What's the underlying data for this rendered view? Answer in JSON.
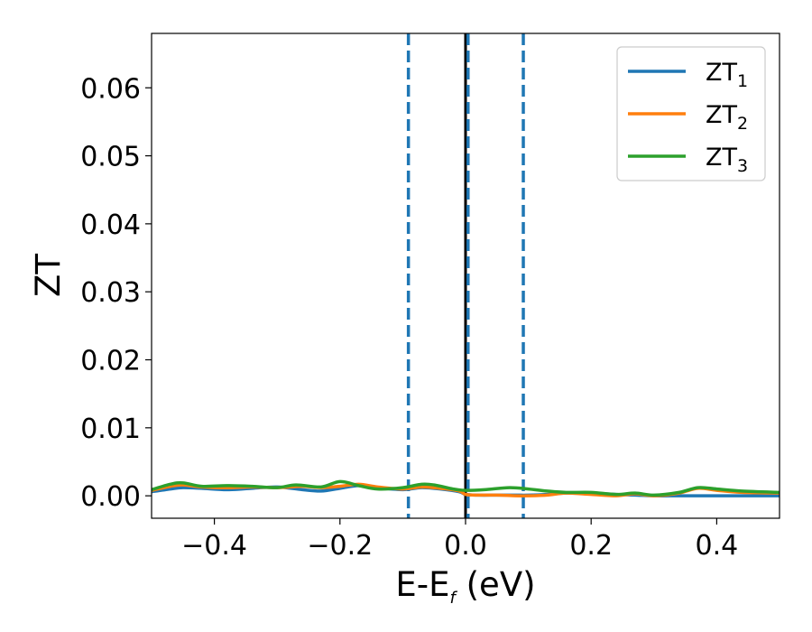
{
  "chart_data": {
    "type": "line",
    "xlabel": "E-E",
    "xlabel_subscript": "f",
    "xlabel_unit": " (eV)",
    "ylabel": "ZT",
    "xlim": [
      -0.5,
      0.5
    ],
    "ylim": [
      -0.0033,
      0.068
    ],
    "xticks": [
      -0.4,
      -0.2,
      0.0,
      0.2,
      0.4
    ],
    "xtick_labels": [
      "−0.4",
      "−0.2",
      "0.0",
      "0.2",
      "0.4"
    ],
    "yticks": [
      0.0,
      0.01,
      0.02,
      0.03,
      0.04,
      0.05,
      0.06
    ],
    "ytick_labels": [
      "0.00",
      "0.01",
      "0.02",
      "0.03",
      "0.04",
      "0.05",
      "0.06"
    ],
    "grid": false,
    "legend_position": "top-right",
    "series": [
      {
        "name": "ZT",
        "subscript": "1",
        "color": "#1f77b4",
        "x": [
          -0.5,
          -0.47,
          -0.45,
          -0.42,
          -0.38,
          -0.34,
          -0.3,
          -0.26,
          -0.23,
          -0.2,
          -0.17,
          -0.14,
          -0.1,
          -0.07,
          -0.04,
          -0.01,
          0.0,
          0.02,
          0.05,
          0.08,
          0.1,
          0.13,
          0.16,
          0.2,
          0.24,
          0.27,
          0.3,
          0.34,
          0.38,
          0.42,
          0.46,
          0.5
        ],
        "y": [
          0.0006,
          0.001,
          0.0012,
          0.0011,
          0.0009,
          0.0011,
          0.0013,
          0.0009,
          0.0007,
          0.0011,
          0.0015,
          0.0012,
          0.0009,
          0.0012,
          0.001,
          0.0006,
          0.0002,
          0.0001,
          0.0001,
          0.0001,
          0.0001,
          0.0002,
          0.0004,
          0.0004,
          0.0002,
          0.0001,
          0.0,
          0.0,
          0.0,
          0.0,
          0.0,
          0.0
        ]
      },
      {
        "name": "ZT",
        "subscript": "2",
        "color": "#ff7f0e",
        "x": [
          -0.5,
          -0.47,
          -0.45,
          -0.42,
          -0.38,
          -0.34,
          -0.3,
          -0.26,
          -0.23,
          -0.2,
          -0.17,
          -0.14,
          -0.1,
          -0.07,
          -0.04,
          -0.01,
          0.0,
          0.02,
          0.05,
          0.08,
          0.1,
          0.13,
          0.16,
          0.2,
          0.24,
          0.27,
          0.3,
          0.34,
          0.37,
          0.4,
          0.44,
          0.5
        ],
        "y": [
          0.0008,
          0.0014,
          0.0016,
          0.0013,
          0.0012,
          0.0013,
          0.0012,
          0.0014,
          0.0012,
          0.0014,
          0.0017,
          0.0013,
          0.001,
          0.0013,
          0.0011,
          0.0007,
          0.0002,
          0.0001,
          0.0001,
          0.0,
          0.0,
          0.0001,
          0.0004,
          0.0002,
          0.0,
          0.0003,
          0.0,
          0.0004,
          0.0011,
          0.0008,
          0.0005,
          0.0004
        ]
      },
      {
        "name": "ZT",
        "subscript": "3",
        "color": "#2ca02c",
        "x": [
          -0.5,
          -0.47,
          -0.45,
          -0.42,
          -0.38,
          -0.34,
          -0.3,
          -0.27,
          -0.23,
          -0.2,
          -0.17,
          -0.14,
          -0.1,
          -0.07,
          -0.05,
          -0.02,
          0.0,
          0.03,
          0.07,
          0.1,
          0.13,
          0.16,
          0.2,
          0.24,
          0.27,
          0.3,
          0.34,
          0.37,
          0.4,
          0.44,
          0.5
        ],
        "y": [
          0.0009,
          0.0017,
          0.0019,
          0.0014,
          0.0015,
          0.0014,
          0.0012,
          0.0016,
          0.0013,
          0.0021,
          0.0015,
          0.001,
          0.0012,
          0.0017,
          0.0016,
          0.001,
          0.0008,
          0.0009,
          0.0012,
          0.001,
          0.0007,
          0.0005,
          0.0005,
          0.0002,
          0.0004,
          0.0001,
          0.0005,
          0.0012,
          0.001,
          0.0007,
          0.0005
        ]
      }
    ],
    "vlines": [
      {
        "x": -0.091,
        "style": "dashed",
        "color": "#1f77b4"
      },
      {
        "x": 0.0,
        "style": "solid",
        "color": "#000000"
      },
      {
        "x": 0.004,
        "style": "dashed",
        "color": "#1f77b4"
      },
      {
        "x": 0.092,
        "style": "dashed",
        "color": "#1f77b4"
      }
    ]
  }
}
